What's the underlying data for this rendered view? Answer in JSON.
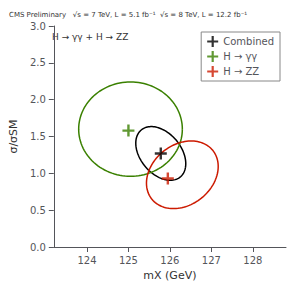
{
  "chart_data": {
    "type": "scatter",
    "title": "CMS Preliminary   √s = 7 TeV, L = 5.1 fb⁻¹  √s = 8 TeV, L = 12.2 fb⁻¹",
    "xlabel": "mX (GeV)",
    "ylabel": "σ/σSM",
    "annotation": "H → γγ + H → ZZ",
    "xlim": [
      123.2,
      128.8
    ],
    "ylim": [
      0.0,
      3.0
    ],
    "xticks": [
      124,
      125,
      126,
      127,
      128
    ],
    "yticks": [
      {
        "value": 0.0,
        "label": "0.0"
      },
      0.5,
      {
        "value": 1.0,
        "label": "1.0"
      },
      1.5,
      {
        "value": 2.0,
        "label": "2.0"
      },
      2.5,
      {
        "value": 3.0,
        "label": "3.0"
      }
    ],
    "grid": false,
    "legend": "upper right",
    "marker": "plus",
    "series": [
      {
        "name": "Combined",
        "color": "black",
        "x": [
          125.78
        ],
        "values": [
          1.27
        ],
        "ellipse": {
          "cx": 125.78,
          "cy": 1.27,
          "width": 1.25,
          "height": 0.65,
          "angle": -18
        }
      },
      {
        "name": "H → γγ",
        "color": "#3a8000",
        "x": [
          125.0
        ],
        "values": [
          1.58
        ],
        "ellipse": {
          "cx": 125.05,
          "cy": 1.6,
          "width": 2.5,
          "height": 1.28,
          "angle": 0
        }
      },
      {
        "name": "H → ZZ",
        "color": "#cc1a00",
        "x": [
          125.95
        ],
        "values": [
          0.93
        ],
        "ellipse": {
          "cx": 126.3,
          "cy": 0.98,
          "width": 1.75,
          "height": 0.88,
          "angle": 10
        }
      }
    ]
  }
}
